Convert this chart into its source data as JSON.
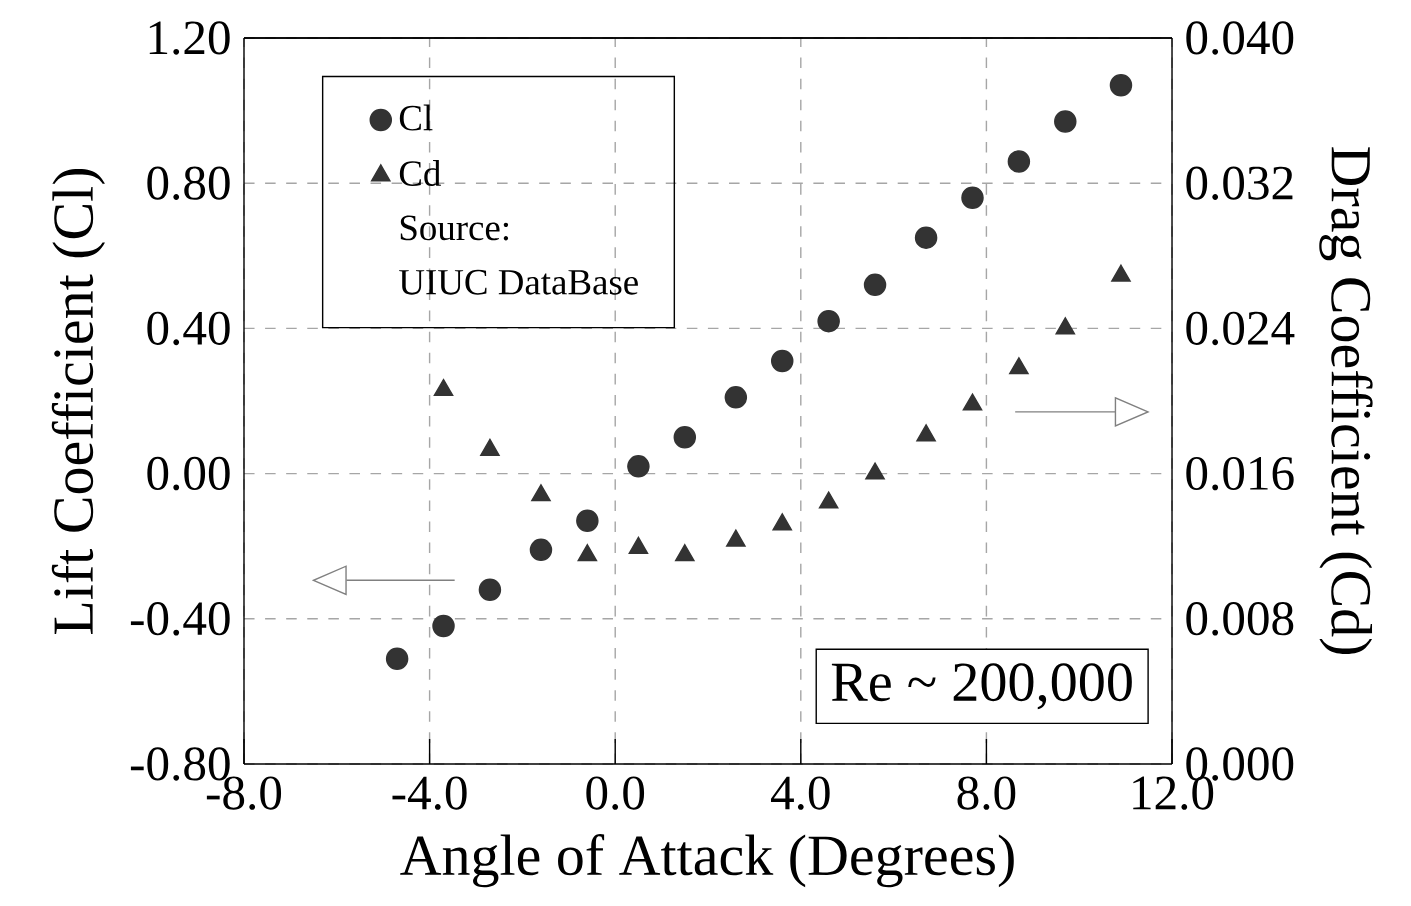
{
  "chart_data": {
    "type": "scatter",
    "xlabel": "Angle of Attack (Degrees)",
    "ylabel": "Lift Coefficient (Cl)",
    "y2label": "Drag Coefficient (Cd)",
    "x": [
      -4.7,
      -3.7,
      -2.7,
      -1.6,
      -0.6,
      0.5,
      1.5,
      2.6,
      3.6,
      4.6,
      5.6,
      6.7,
      7.7,
      8.7,
      9.7,
      10.9
    ],
    "series": [
      {
        "name": "Cl",
        "color": "#333333",
        "marker": "circle",
        "values": [
          -0.51,
          -0.42,
          -0.32,
          -0.21,
          -0.13,
          0.02,
          0.1,
          0.21,
          0.31,
          0.42,
          0.52,
          0.65,
          0.76,
          0.86,
          0.97,
          1.07
        ]
      },
      {
        "name": "Cd",
        "color": "#333333",
        "marker": "triangle",
        "axis": "y2",
        "x": [
          -3.7,
          -2.7,
          -1.6,
          -0.6,
          0.5,
          1.5,
          2.6,
          3.6,
          4.6,
          5.6,
          6.7,
          7.7,
          8.7,
          9.7,
          10.9
        ],
        "values": [
          0.0206,
          0.0173,
          0.0148,
          0.0115,
          0.0119,
          0.0115,
          0.0123,
          0.0132,
          0.0144,
          0.016,
          0.0181,
          0.0198,
          0.0218,
          0.024,
          0.0269
        ]
      }
    ],
    "xlim": [
      -8,
      12
    ],
    "xticks": [
      {
        "value": -8,
        "label": "-8.0"
      },
      {
        "value": -4,
        "label": "-4.0"
      },
      {
        "value": 0,
        "label": "0.0"
      },
      {
        "value": 4,
        "label": "4.0"
      },
      {
        "value": 8,
        "label": "8.0"
      },
      {
        "value": 12,
        "label": "12.0"
      }
    ],
    "ylim": [
      -0.8,
      1.2
    ],
    "yticks": [
      {
        "value": -0.8,
        "label": "-0.80"
      },
      {
        "value": -0.4,
        "label": "-0.40"
      },
      {
        "value": 0,
        "label": "0.00"
      },
      {
        "value": 0.4,
        "label": "0.40"
      },
      {
        "value": 0.8,
        "label": "0.80"
      },
      {
        "value": 1.2,
        "label": "1.20"
      }
    ],
    "y2lim": [
      0,
      0.04
    ],
    "y2ticks": [
      {
        "value": 0,
        "label": "0.000"
      },
      {
        "value": 0.008,
        "label": "0.008"
      },
      {
        "value": 0.016,
        "label": "0.016"
      },
      {
        "value": 0.024,
        "label": "0.024"
      },
      {
        "value": 0.032,
        "label": "0.032"
      },
      {
        "value": 0.04,
        "label": "0.040"
      }
    ],
    "annotations": [
      "Source:",
      "UIUC DataBase",
      "Re ~ 200,000"
    ],
    "grid": true,
    "legend": "top left"
  }
}
